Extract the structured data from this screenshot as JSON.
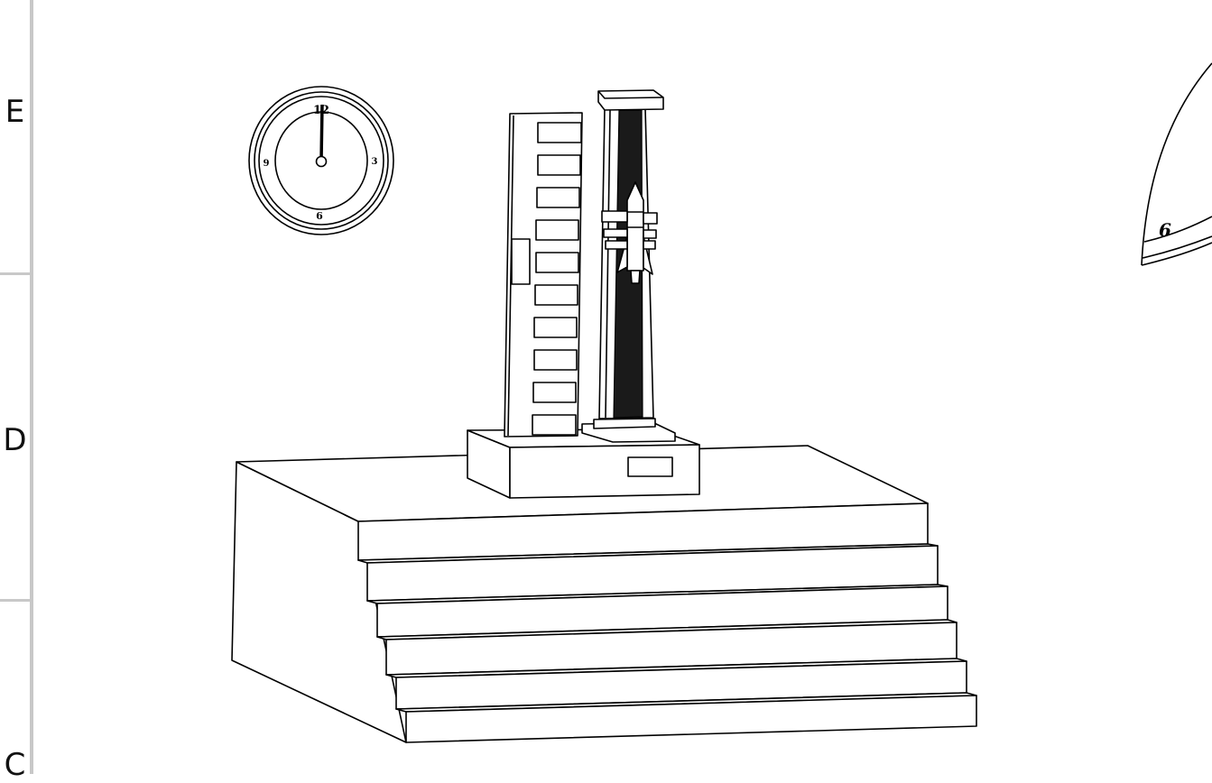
{
  "drawing_frame": {
    "zone_labels": [
      "E",
      "D",
      "C"
    ]
  },
  "left_clock": {
    "numerals": [
      "12",
      "3",
      "6",
      "9"
    ]
  },
  "right_clock_partial": {
    "numerals": [
      "6"
    ]
  },
  "colors": {
    "background": "#ffffff",
    "line": "#000000",
    "frame_ruler": "#c8c8c8",
    "shaft_fill": "#1a1a1a"
  }
}
